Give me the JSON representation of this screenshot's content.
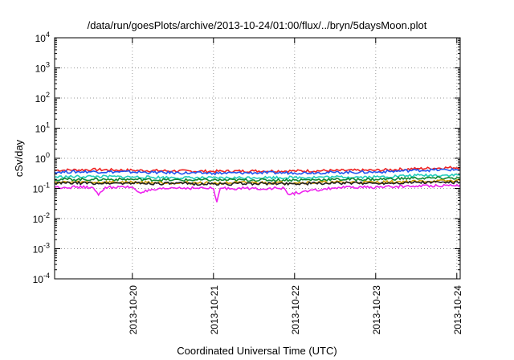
{
  "chart_data": {
    "type": "line",
    "title": "/data/run/goesPlots/archive/2013-10-24/01:00/flux/../bryn/5daysMoon.plot",
    "xlabel": "Coordinated Universal Time (UTC)",
    "ylabel": "cSv/day",
    "yscale": "log",
    "ylim": [
      0.0001,
      10000
    ],
    "xlim": [
      "2013-10-19T01:00",
      "2013-10-24T01:00"
    ],
    "grid": true,
    "legend": "none",
    "x_ticks": [
      "2013-10-20",
      "2013-10-21",
      "2013-10-22",
      "2013-10-23",
      "2013-10-24"
    ],
    "y_ticks": [
      {
        "base": "10",
        "exp": "-4"
      },
      {
        "base": "10",
        "exp": "-3"
      },
      {
        "base": "10",
        "exp": "-2"
      },
      {
        "base": "10",
        "exp": "-1"
      },
      {
        "base": "10",
        "exp": "0"
      },
      {
        "base": "10",
        "exp": "1"
      },
      {
        "base": "10",
        "exp": "2"
      },
      {
        "base": "10",
        "exp": "3"
      },
      {
        "base": "10",
        "exp": "4"
      }
    ],
    "series": [
      {
        "color": "#ee2222",
        "x": [
          "2013-10-19T01:00",
          "2013-10-19T12:00",
          "2013-10-20T00:00",
          "2013-10-20T12:00",
          "2013-10-21T00:00",
          "2013-10-21T12:00",
          "2013-10-22T00:00",
          "2013-10-22T12:00",
          "2013-10-23T00:00",
          "2013-10-23T12:00",
          "2013-10-24T01:00"
        ],
        "values": [
          0.4,
          0.42,
          0.4,
          0.38,
          0.37,
          0.38,
          0.38,
          0.39,
          0.4,
          0.45,
          0.5
        ]
      },
      {
        "color": "#2255ee",
        "x": [
          "2013-10-19T01:00",
          "2013-10-19T12:00",
          "2013-10-20T00:00",
          "2013-10-20T12:00",
          "2013-10-21T00:00",
          "2013-10-21T12:00",
          "2013-10-22T00:00",
          "2013-10-22T12:00",
          "2013-10-23T00:00",
          "2013-10-23T12:00",
          "2013-10-24T01:00"
        ],
        "values": [
          0.35,
          0.36,
          0.35,
          0.33,
          0.32,
          0.33,
          0.33,
          0.34,
          0.35,
          0.4,
          0.42
        ]
      },
      {
        "color": "#22ccbb",
        "x": [
          "2013-10-19T01:00",
          "2013-10-19T12:00",
          "2013-10-20T00:00",
          "2013-10-20T12:00",
          "2013-10-21T00:00",
          "2013-10-21T12:00",
          "2013-10-22T00:00",
          "2013-10-22T12:00",
          "2013-10-23T00:00",
          "2013-10-23T12:00",
          "2013-10-24T01:00"
        ],
        "values": [
          0.24,
          0.25,
          0.24,
          0.23,
          0.22,
          0.23,
          0.23,
          0.24,
          0.24,
          0.27,
          0.28
        ]
      },
      {
        "color": "#118833",
        "x": [
          "2013-10-19T01:00",
          "2013-10-19T12:00",
          "2013-10-20T00:00",
          "2013-10-20T12:00",
          "2013-10-21T00:00",
          "2013-10-21T12:00",
          "2013-10-22T00:00",
          "2013-10-22T12:00",
          "2013-10-23T00:00",
          "2013-10-23T12:00",
          "2013-10-24T01:00"
        ],
        "values": [
          0.2,
          0.2,
          0.2,
          0.19,
          0.19,
          0.19,
          0.19,
          0.2,
          0.2,
          0.22,
          0.22
        ]
      },
      {
        "color": "#cc9900",
        "x": [
          "2013-10-19T01:00",
          "2013-10-19T12:00",
          "2013-10-20T00:00",
          "2013-10-20T12:00",
          "2013-10-21T00:00",
          "2013-10-21T12:00",
          "2013-10-22T00:00",
          "2013-10-22T12:00",
          "2013-10-23T00:00",
          "2013-10-23T12:00",
          "2013-10-24T01:00"
        ],
        "values": [
          0.16,
          0.16,
          0.16,
          0.155,
          0.15,
          0.155,
          0.155,
          0.16,
          0.16,
          0.17,
          0.18
        ]
      },
      {
        "color": "#222222",
        "x": [
          "2013-10-19T01:00",
          "2013-10-19T12:00",
          "2013-10-20T00:00",
          "2013-10-20T12:00",
          "2013-10-21T00:00",
          "2013-10-21T12:00",
          "2013-10-22T00:00",
          "2013-10-22T12:00",
          "2013-10-23T00:00",
          "2013-10-23T12:00",
          "2013-10-24T01:00"
        ],
        "values": [
          0.15,
          0.15,
          0.15,
          0.145,
          0.14,
          0.145,
          0.145,
          0.15,
          0.15,
          0.16,
          0.16
        ]
      },
      {
        "color": "#ee22ee",
        "x": [
          "2013-10-19T01:00",
          "2013-10-19T12:00",
          "2013-10-19T14:00",
          "2013-10-19T16:00",
          "2013-10-20T00:00",
          "2013-10-20T02:00",
          "2013-10-20T12:00",
          "2013-10-21T00:00",
          "2013-10-21T01:00",
          "2013-10-21T02:00",
          "2013-10-21T12:00",
          "2013-10-21T21:00",
          "2013-10-21T22:00",
          "2013-10-22T12:00",
          "2013-10-23T00:00",
          "2013-10-23T12:00",
          "2013-10-24T01:00"
        ],
        "values": [
          0.11,
          0.11,
          0.06,
          0.11,
          0.11,
          0.075,
          0.105,
          0.1,
          0.035,
          0.1,
          0.1,
          0.1,
          0.065,
          0.105,
          0.11,
          0.12,
          0.13
        ]
      }
    ]
  }
}
